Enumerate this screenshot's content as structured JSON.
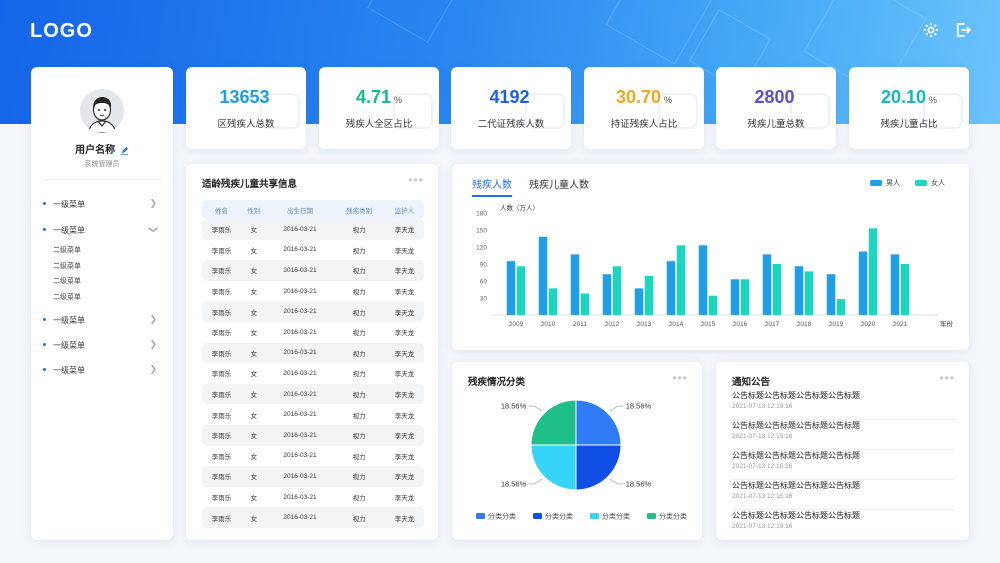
{
  "header": {
    "logo": "LOGO",
    "settings_icon": "gear-icon",
    "logout_icon": "logout-icon"
  },
  "user": {
    "name": "用户名称",
    "role": "系统管理员",
    "edit_icon": "pencil-icon"
  },
  "sidebar": {
    "items": [
      {
        "label": "一级菜单",
        "expanded": false
      },
      {
        "label": "一级菜单",
        "expanded": true,
        "children": [
          "二级菜单",
          "二级菜单",
          "二级菜单",
          "二级菜单"
        ]
      },
      {
        "label": "一级菜单",
        "expanded": false
      },
      {
        "label": "一级菜单",
        "expanded": false
      },
      {
        "label": "一级菜单",
        "expanded": false
      }
    ]
  },
  "stats": [
    {
      "value": "13653",
      "unit": "",
      "label": "区残疾人总数",
      "color": "#1b9ee8"
    },
    {
      "value": "4.71",
      "unit": "%",
      "label": "残疾人全区占比",
      "color": "#14b894"
    },
    {
      "value": "4192",
      "unit": "",
      "label": "二代证残疾人数",
      "color": "#1e5ee6"
    },
    {
      "value": "30.70",
      "unit": "%",
      "label": "持证残疾人占比",
      "color": "#f5a623"
    },
    {
      "value": "2800",
      "unit": "",
      "label": "残疾儿童总数",
      "color": "#5a4fd8"
    },
    {
      "value": "20.10",
      "unit": "%",
      "label": "残疾儿童占比",
      "color": "#14b8c4"
    }
  ],
  "table": {
    "title": "适龄残疾儿童共享信息",
    "headers": [
      "姓名",
      "性别",
      "出生日期",
      "残疾类别",
      "监护人"
    ],
    "rows": [
      [
        "李雨乐",
        "女",
        "2016-03-21",
        "视力",
        "李天龙"
      ],
      [
        "李雨乐",
        "女",
        "2016-03-21",
        "视力",
        "李天龙"
      ],
      [
        "李雨乐",
        "女",
        "2016-03-21",
        "视力",
        "李天龙"
      ],
      [
        "李雨乐",
        "女",
        "2016-03-21",
        "视力",
        "李天龙"
      ],
      [
        "李雨乐",
        "女",
        "2016-03-21",
        "视力",
        "李天龙"
      ],
      [
        "李雨乐",
        "女",
        "2016-03-21",
        "视力",
        "李天龙"
      ],
      [
        "李雨乐",
        "女",
        "2016-03-21",
        "视力",
        "李天龙"
      ],
      [
        "李雨乐",
        "女",
        "2016-03-21",
        "视力",
        "李天龙"
      ],
      [
        "李雨乐",
        "女",
        "2016-03-21",
        "视力",
        "李天龙"
      ],
      [
        "李雨乐",
        "女",
        "2016-03-21",
        "视力",
        "李天龙"
      ],
      [
        "李雨乐",
        "女",
        "2016-03-21",
        "视力",
        "李天龙"
      ],
      [
        "李雨乐",
        "女",
        "2016-03-21",
        "视力",
        "李天龙"
      ],
      [
        "李雨乐",
        "女",
        "2016-03-21",
        "视力",
        "李天龙"
      ],
      [
        "李雨乐",
        "女",
        "2016-03-21",
        "视力",
        "李天龙"
      ],
      [
        "李雨乐",
        "女",
        "2016-03-21",
        "视力",
        "李天龙"
      ]
    ]
  },
  "bar_panel": {
    "tabs": [
      "残疾人数",
      "残疾儿童人数"
    ],
    "active_tab": 0
  },
  "pie_panel": {
    "title": "残疾情况分类"
  },
  "notice_panel": {
    "title": "通知公告",
    "items": [
      {
        "title": "公告标题公告标题公告标题公告标题",
        "date": "2021-07-13  12:15:16"
      },
      {
        "title": "公告标题公告标题公告标题公告标题",
        "date": "2021-07-13  12:15:16"
      },
      {
        "title": "公告标题公告标题公告标题公告标题",
        "date": "2021-07-13  12:15:16"
      },
      {
        "title": "公告标题公告标题公告标题公告标题",
        "date": "2021-07-13  12:15:16"
      },
      {
        "title": "公告标题公告标题公告标题公告标题",
        "date": "2021-07-13  12:15:16"
      }
    ]
  },
  "chart_data": [
    {
      "type": "bar",
      "ylabel": "人数（万人）",
      "xlabel": "年份",
      "ylim": [
        0,
        180
      ],
      "yticks": [
        30,
        60,
        90,
        120,
        150,
        180
      ],
      "categories": [
        "2009",
        "2010",
        "2011",
        "2012",
        "2013",
        "2014",
        "2015",
        "2016",
        "2017",
        "2018",
        "2019",
        "2020",
        "2021"
      ],
      "series": [
        {
          "name": "男人",
          "color": "#1ea0e8",
          "values": [
            95,
            138,
            107,
            72,
            47,
            95,
            123,
            63,
            107,
            86,
            72,
            112,
            107
          ]
        },
        {
          "name": "女人",
          "color": "#1dd5c0",
          "values": [
            86,
            47,
            38,
            86,
            69,
            123,
            34,
            63,
            90,
            77,
            28,
            153,
            90
          ]
        }
      ],
      "legend": "top-right"
    },
    {
      "type": "pie",
      "slices": [
        {
          "name": "分类分类",
          "value": 18.56,
          "label": "18.56%",
          "color": "#2f7cf6"
        },
        {
          "name": "分类分类",
          "value": 18.56,
          "label": "18.56%",
          "color": "#0f4fe6"
        },
        {
          "name": "分类分类",
          "value": 18.56,
          "label": "18.56%",
          "color": "#36d5f7"
        },
        {
          "name": "分类分类",
          "value": 18.56,
          "label": "18.56%",
          "color": "#1fbf8a"
        }
      ],
      "legend": "bottom"
    }
  ]
}
